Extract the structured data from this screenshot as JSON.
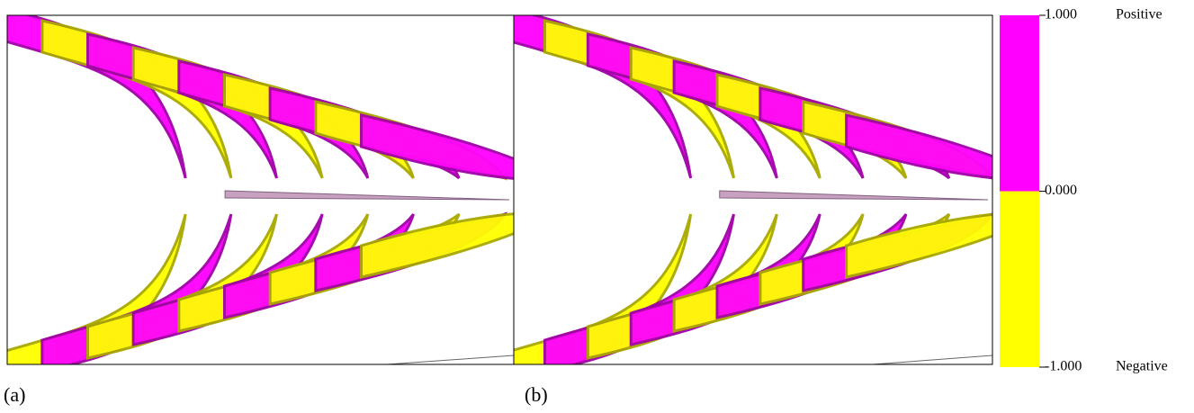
{
  "panels": [
    {
      "label": "(a)"
    },
    {
      "label": "(b)"
    }
  ],
  "colorbar": {
    "range": [
      -1,
      1
    ],
    "ticks": [
      {
        "value": 1,
        "label": "1.000"
      },
      {
        "value": 0,
        "label": "0.000"
      },
      {
        "value": -1,
        "label": "-1.000"
      }
    ],
    "positive_label": "Positive",
    "negative_label": "Negative",
    "positive_color": "#ff00ff",
    "negative_color": "#ffff00"
  }
}
